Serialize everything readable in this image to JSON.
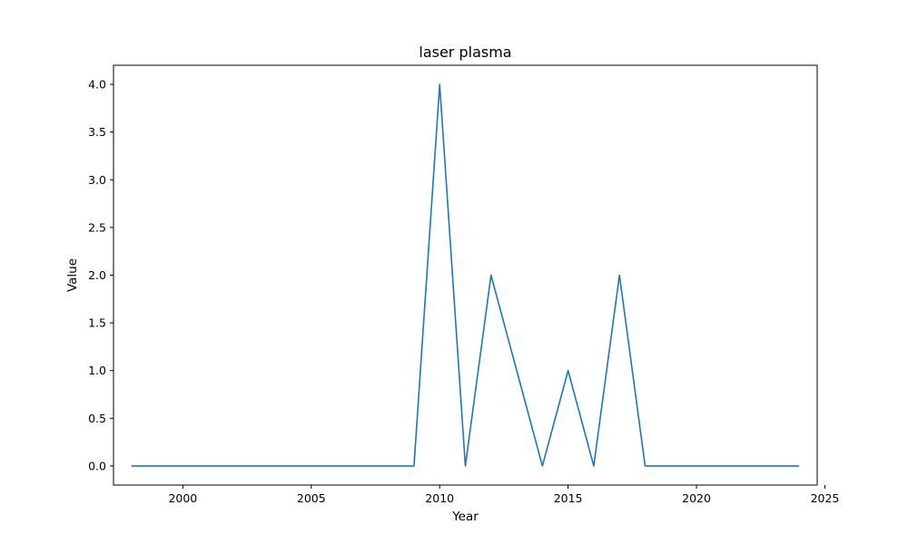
{
  "chart_data": {
    "type": "line",
    "title": "laser plasma",
    "xlabel": "Year",
    "ylabel": "Value",
    "xlim": [
      1997.3,
      2024.7
    ],
    "ylim": [
      -0.2,
      4.2
    ],
    "xticks": [
      2000,
      2005,
      2010,
      2015,
      2020,
      2025
    ],
    "yticks": [
      0.0,
      0.5,
      1.0,
      1.5,
      2.0,
      2.5,
      3.0,
      3.5,
      4.0
    ],
    "x": [
      1998,
      1999,
      2000,
      2001,
      2002,
      2003,
      2004,
      2005,
      2006,
      2007,
      2008,
      2009,
      2010,
      2011,
      2012,
      2013,
      2014,
      2015,
      2016,
      2017,
      2018,
      2019,
      2020,
      2021,
      2022,
      2023,
      2024
    ],
    "series": [
      {
        "values": [
          0,
          0,
          0,
          0,
          0,
          0,
          0,
          0,
          0,
          0,
          0,
          0,
          4,
          0,
          2,
          1,
          0,
          1,
          0,
          2,
          0,
          0,
          0,
          0,
          0,
          0,
          0
        ],
        "color": "#1f77b4"
      }
    ],
    "grid": false,
    "legend": "none"
  }
}
